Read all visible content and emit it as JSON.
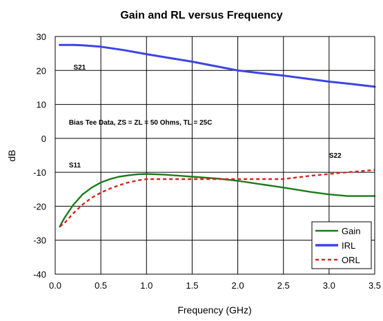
{
  "chart_data": {
    "type": "line",
    "title": "Gain and RL versus Frequency",
    "xlabel": "Frequency (GHz)",
    "ylabel": "dB",
    "xlim": [
      0.0,
      3.5
    ],
    "ylim": [
      -40,
      30
    ],
    "x_ticks": [
      "0.0",
      "0.5",
      "1.0",
      "1.5",
      "2.0",
      "2.5",
      "3.0",
      "3.5"
    ],
    "y_ticks": [
      "30",
      "20",
      "10",
      "0",
      "-10",
      "-20",
      "-30",
      "-40"
    ],
    "grid": true,
    "legend_position": "bottom-right",
    "annotations": [
      {
        "text": "S21",
        "x": 0.2,
        "y": 20.3
      },
      {
        "text": "Bias Tee Data, ZS = ZL = 50 Ohms, TL = 25C",
        "x": 0.15,
        "y": 4.0
      },
      {
        "text": "S11",
        "x": 0.15,
        "y": -8.5
      },
      {
        "text": "S22",
        "x": 3.0,
        "y": -5.7
      }
    ],
    "series": [
      {
        "name": "Gain",
        "color": "#1a7a1a",
        "style": "solid",
        "x": [
          0.05,
          0.1,
          0.2,
          0.3,
          0.4,
          0.5,
          0.6,
          0.7,
          0.8,
          0.9,
          1.0,
          1.2,
          1.5,
          1.8,
          2.0,
          2.2,
          2.5,
          2.8,
          3.0,
          3.2,
          3.5
        ],
        "y": [
          -26,
          -23.5,
          -19.5,
          -16.5,
          -14.5,
          -13.0,
          -12.0,
          -11.3,
          -10.9,
          -10.6,
          -10.5,
          -10.7,
          -11.3,
          -11.9,
          -12.5,
          -13.3,
          -14.5,
          -15.8,
          -16.5,
          -17.0,
          -17.0
        ]
      },
      {
        "name": "IRL",
        "color": "#3b44e6",
        "style": "solid",
        "x": [
          0.05,
          0.1,
          0.2,
          0.3,
          0.4,
          0.5,
          0.75,
          1.0,
          1.25,
          1.5,
          1.75,
          2.0,
          2.25,
          2.5,
          2.75,
          3.0,
          3.25,
          3.5
        ],
        "y": [
          27.5,
          27.5,
          27.5,
          27.4,
          27.2,
          27.0,
          26.0,
          24.8,
          23.7,
          22.6,
          21.3,
          20.0,
          19.2,
          18.5,
          17.6,
          16.7,
          16.0,
          15.2
        ]
      },
      {
        "name": "ORL",
        "color": "#e02020",
        "style": "dashed",
        "x": [
          0.05,
          0.1,
          0.2,
          0.3,
          0.4,
          0.5,
          0.6,
          0.7,
          0.8,
          0.9,
          1.0,
          1.2,
          1.5,
          2.0,
          2.5,
          2.8,
          3.0,
          3.2,
          3.5
        ],
        "y": [
          -26,
          -25,
          -22,
          -19.5,
          -17.5,
          -16.0,
          -14.8,
          -13.8,
          -13.0,
          -12.4,
          -12.0,
          -12.0,
          -12.0,
          -12.0,
          -12.0,
          -11.0,
          -10.5,
          -10.0,
          -9.3
        ]
      }
    ]
  }
}
